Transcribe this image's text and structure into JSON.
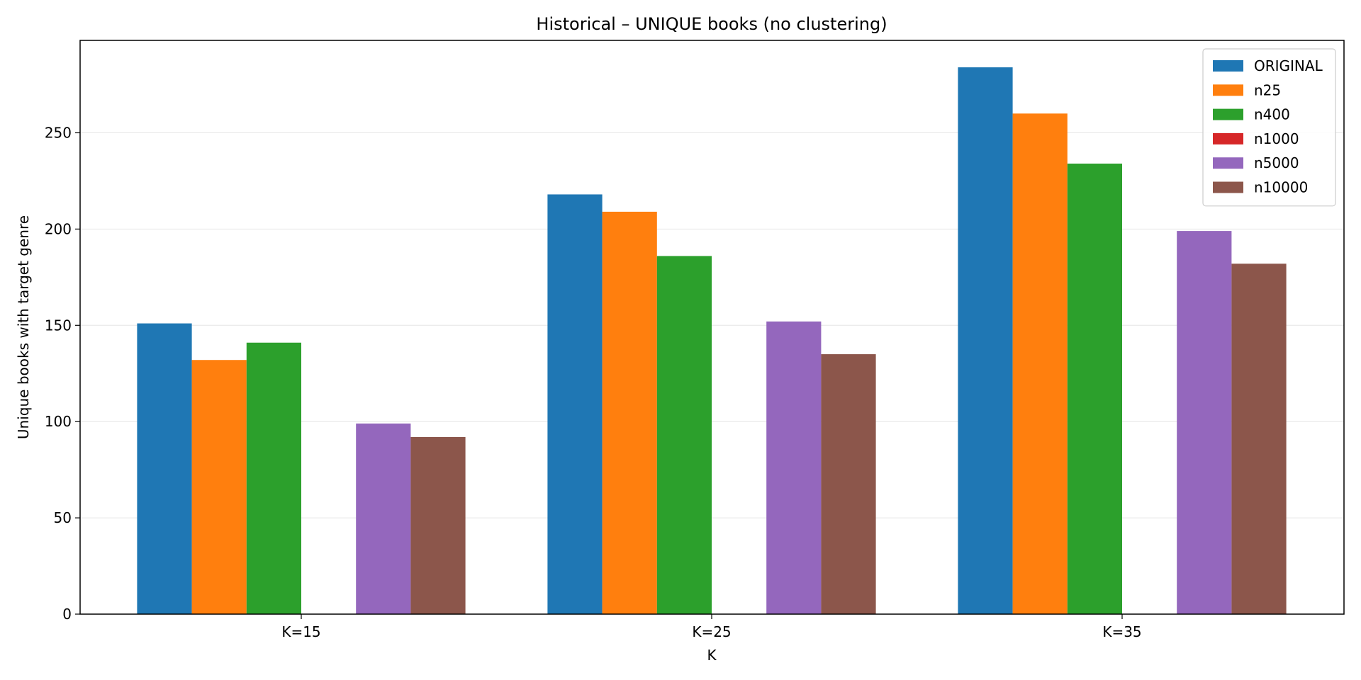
{
  "chart_data": {
    "type": "bar",
    "title": "Historical – UNIQUE books (no clustering)",
    "xlabel": "K",
    "ylabel": "Unique books with target genre",
    "categories": [
      "K=15",
      "K=25",
      "K=35"
    ],
    "ylim": [
      0,
      298
    ],
    "yticks": [
      0,
      50,
      100,
      150,
      200,
      250
    ],
    "grid": "horizontal",
    "legend_position": "top-right",
    "series": [
      {
        "name": "ORIGINAL",
        "color": "#1f77b4",
        "values": [
          151,
          218,
          284
        ]
      },
      {
        "name": "n25",
        "color": "#ff7f0e",
        "values": [
          132,
          209,
          260
        ]
      },
      {
        "name": "n400",
        "color": "#2ca02c",
        "values": [
          141,
          186,
          234
        ]
      },
      {
        "name": "n1000",
        "color": "#d62728",
        "values": [
          0,
          0,
          0
        ]
      },
      {
        "name": "n5000",
        "color": "#9467bd",
        "values": [
          99,
          152,
          199
        ]
      },
      {
        "name": "n10000",
        "color": "#8c564b",
        "values": [
          92,
          135,
          182
        ]
      }
    ]
  }
}
